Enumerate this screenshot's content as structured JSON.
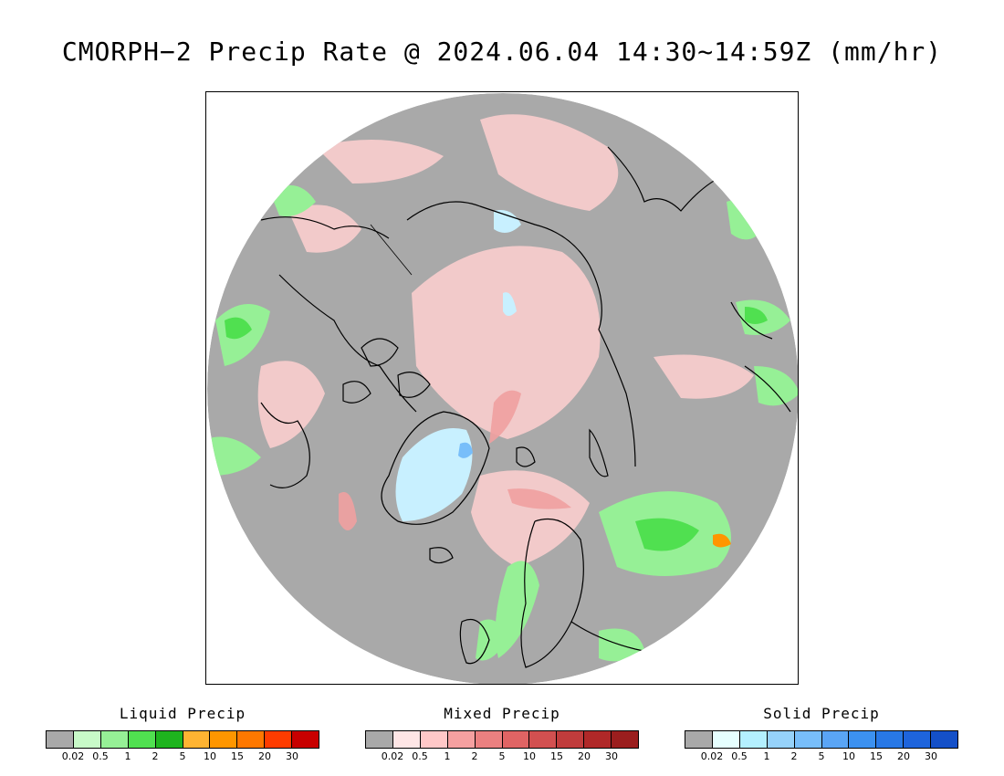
{
  "title": "CMORPH−2 Precip Rate @ 2024.06.04 14:30~14:59Z (mm/hr)",
  "colors": {
    "no_precip": "#a9a9a9",
    "ocean_disc": "#a9a9a9",
    "coastline": "#000000",
    "frame": "#000000"
  },
  "legends": [
    {
      "title": "Liquid Precip",
      "colors": [
        "#a9a9a9",
        "#c8fac8",
        "#96f096",
        "#50e050",
        "#1eb41e",
        "#ffb432",
        "#ff9600",
        "#ff7800",
        "#ff3c00",
        "#c80000"
      ],
      "ticks": [
        "0.02",
        "0.5",
        "1",
        "2",
        "5",
        "10",
        "15",
        "20",
        "30"
      ]
    },
    {
      "title": "Mixed Precip",
      "colors": [
        "#a9a9a9",
        "#ffe6e6",
        "#ffc8c8",
        "#f5a0a0",
        "#eb8080",
        "#e06464",
        "#d25050",
        "#c03c3c",
        "#b02828",
        "#9b1e1e"
      ],
      "ticks": [
        "0.02",
        "0.5",
        "1",
        "2",
        "5",
        "10",
        "15",
        "20",
        "30"
      ]
    },
    {
      "title": "Solid Precip",
      "colors": [
        "#a9a9a9",
        "#e6ffff",
        "#b4f0ff",
        "#96d2fa",
        "#78befa",
        "#5aa5f5",
        "#3c91f0",
        "#2878e6",
        "#1e64dc",
        "#1450c8"
      ],
      "ticks": [
        "0.02",
        "0.5",
        "1",
        "2",
        "5",
        "10",
        "15",
        "20",
        "30"
      ]
    }
  ]
}
